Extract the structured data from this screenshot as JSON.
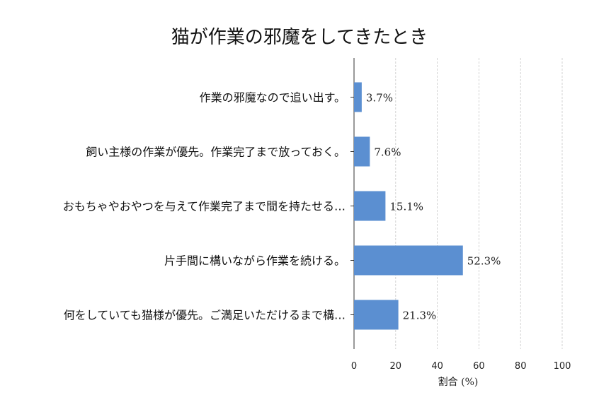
{
  "chart_data": {
    "type": "bar",
    "orientation": "horizontal",
    "title": "猫が作業の邪魔をしてきたとき",
    "xlabel": "割合 (%)",
    "ylabel": "",
    "xlim": [
      0,
      100
    ],
    "x_ticks": [
      0,
      20,
      40,
      60,
      80,
      100
    ],
    "grid": "vertical dashed",
    "bar_color": "#5b8fd1",
    "categories": [
      "作業の邪魔なので追い出す。",
      "飼い主様の作業が優先。作業完了まで放っておく。",
      "おもちゃやおやつを与えて作業完了まで間を持たせる…",
      "片手間に構いながら作業を続ける。",
      "何をしていても猫様が優先。ご満足いただけるまで構…"
    ],
    "values": [
      3.7,
      7.6,
      15.1,
      52.3,
      21.3
    ],
    "value_labels": [
      "3.7%",
      "7.6%",
      "15.1%",
      "52.3%",
      "21.3%"
    ]
  }
}
